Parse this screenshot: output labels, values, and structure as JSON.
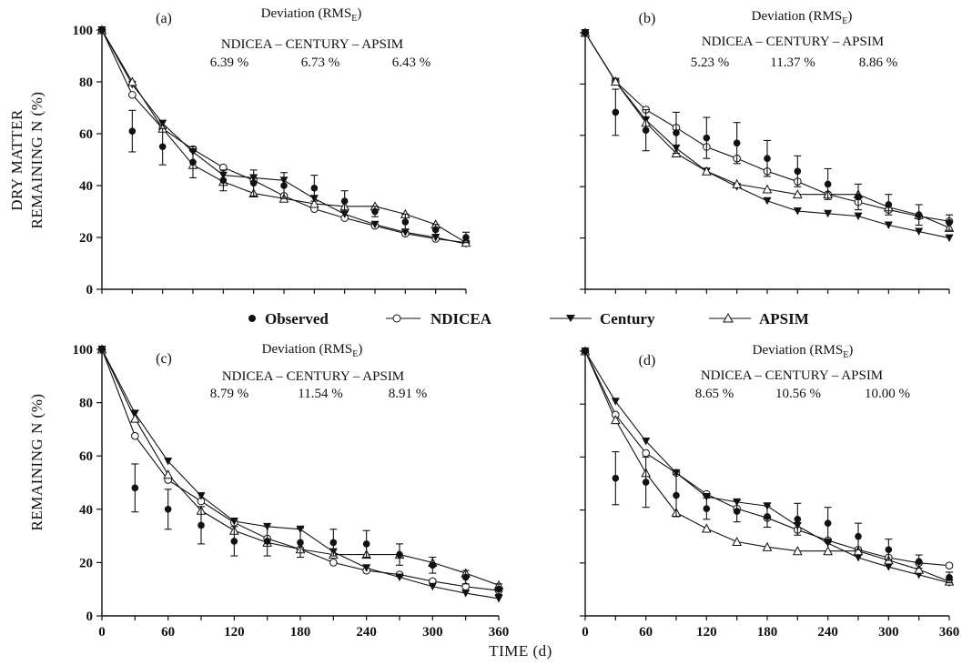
{
  "figure": {
    "xlabel": "TIME (d)",
    "ylabel_top_line1": "DRY MATTER",
    "ylabel_top_line2": "REMAINING N (%)",
    "ylabel_bottom": "REMAINING N (%)"
  },
  "legend": {
    "position": "center, between panel rows",
    "entries": [
      {
        "marker": "filled-circle",
        "label": "Observed"
      },
      {
        "marker": "open-circle",
        "label": "NDICEA"
      },
      {
        "marker": "filled-triangle-down",
        "label": "Century"
      },
      {
        "marker": "open-triangle-up",
        "label": "APSIM"
      }
    ]
  },
  "chart_data": [
    {
      "type": "line",
      "panel": "(a)",
      "deviation_title": "Deviation (RMS",
      "deviation_subscript": "E",
      "deviation_title_end": ")",
      "deviation_models": "NDICEA – CENTURY – APSIM",
      "deviation_values": [
        "6.39 %",
        "6.73 %",
        "6.43 %"
      ],
      "x": [
        0,
        30,
        60,
        90,
        120,
        150,
        180,
        210,
        240,
        270,
        300,
        330,
        360
      ],
      "xticks": [],
      "yticks": [
        0,
        20,
        40,
        60,
        80,
        100
      ],
      "xlim": [
        0,
        360
      ],
      "ylim": [
        0,
        100
      ],
      "grid": false,
      "series": [
        {
          "name": "Observed",
          "marker": "filled-circle",
          "line": false,
          "values": [
            100,
            61,
            55,
            49,
            42,
            41,
            40,
            39,
            34,
            30,
            26,
            23,
            20
          ],
          "error": [
            0,
            8,
            7,
            6,
            4,
            5,
            5,
            5,
            4,
            2,
            3,
            2,
            2
          ]
        },
        {
          "name": "NDICEA",
          "marker": "open-circle",
          "line": true,
          "values": [
            100,
            75,
            62,
            54,
            47,
            42,
            36,
            31,
            27.5,
            24.5,
            21.5,
            19.5,
            18
          ]
        },
        {
          "name": "Century",
          "marker": "filled-triangle-down",
          "line": true,
          "values": [
            100,
            79,
            64,
            53,
            44,
            43,
            42,
            35,
            29,
            25,
            22,
            20,
            17.5
          ]
        },
        {
          "name": "APSIM",
          "marker": "open-triangle-up",
          "line": true,
          "values": [
            100,
            80,
            62,
            48,
            41.5,
            37,
            35,
            33,
            32,
            32,
            29,
            25,
            18
          ]
        }
      ]
    },
    {
      "type": "line",
      "panel": "(b)",
      "deviation_title": "Deviation (RMS",
      "deviation_subscript": "E",
      "deviation_title_end": ")",
      "deviation_models": "NDICEA – CENTURY – APSIM",
      "deviation_values": [
        "5.23 %",
        "11.37 %",
        "8.86 %"
      ],
      "x": [
        0,
        30,
        60,
        90,
        120,
        150,
        180,
        210,
        240,
        270,
        300,
        330,
        360
      ],
      "xticks": [],
      "yticks": [],
      "xlim": [
        0,
        360
      ],
      "ylim": [
        0,
        100
      ],
      "grid": false,
      "series": [
        {
          "name": "Observed",
          "marker": "filled-circle",
          "line": false,
          "values": [
            100,
            69,
            62,
            61,
            59,
            57,
            51,
            46,
            41,
            36,
            33,
            29,
            26
          ],
          "error": [
            0,
            9,
            8,
            8,
            8,
            8,
            7,
            6,
            6,
            5,
            4,
            4,
            3
          ]
        },
        {
          "name": "NDICEA",
          "marker": "open-circle",
          "line": true,
          "values": [
            100,
            81,
            70,
            63,
            55.5,
            51,
            46,
            42,
            37,
            34,
            31,
            28.5,
            26.5
          ]
        },
        {
          "name": "Century",
          "marker": "filled-triangle-down",
          "line": true,
          "values": [
            100,
            81,
            66,
            55,
            46,
            40,
            34.5,
            30.5,
            29.5,
            28.5,
            25,
            22.5,
            20
          ]
        },
        {
          "name": "APSIM",
          "marker": "open-triangle-up",
          "line": true,
          "values": [
            100,
            81,
            65,
            53,
            46,
            41,
            39,
            37,
            37,
            37,
            32,
            29,
            24
          ]
        }
      ]
    },
    {
      "type": "line",
      "panel": "(c)",
      "deviation_title": "Deviation (RMS",
      "deviation_subscript": "E",
      "deviation_title_end": ")",
      "deviation_models": "NDICEA – CENTURY – APSIM",
      "deviation_values": [
        "8.79 %",
        "11.54 %",
        "8.91 %"
      ],
      "x": [
        0,
        30,
        60,
        90,
        120,
        150,
        180,
        210,
        240,
        270,
        300,
        330,
        360
      ],
      "xticks": [
        0,
        60,
        120,
        180,
        240,
        300,
        360
      ],
      "yticks": [
        0,
        20,
        40,
        60,
        80,
        100
      ],
      "xlim": [
        0,
        360
      ],
      "ylim": [
        0,
        100
      ],
      "grid": false,
      "series": [
        {
          "name": "Observed",
          "marker": "filled-circle",
          "line": false,
          "values": [
            100,
            48,
            40,
            34,
            28,
            28,
            27.5,
            27.5,
            27,
            23,
            19,
            14.5,
            10
          ],
          "error": [
            0,
            9,
            7.5,
            7,
            5.5,
            5.5,
            5.5,
            5,
            5,
            4,
            3,
            2.5,
            2
          ]
        },
        {
          "name": "NDICEA",
          "marker": "open-circle",
          "line": true,
          "values": [
            100,
            67.5,
            51,
            43,
            35,
            29,
            25,
            20,
            17,
            15.5,
            13,
            11,
            9.5
          ]
        },
        {
          "name": "Century",
          "marker": "filled-triangle-down",
          "line": true,
          "values": [
            100,
            76,
            58,
            45,
            35.5,
            33.5,
            32.5,
            24,
            18,
            14.5,
            11,
            8.5,
            6.5
          ]
        },
        {
          "name": "APSIM",
          "marker": "open-triangle-up",
          "line": true,
          "values": [
            100,
            74,
            53,
            39.5,
            32,
            27.5,
            25,
            23,
            23,
            23,
            20,
            16,
            11.5
          ]
        }
      ]
    },
    {
      "type": "line",
      "panel": "(d)",
      "deviation_title": "Deviation (RMS",
      "deviation_subscript": "E",
      "deviation_title_end": ")",
      "deviation_models": "NDICEA – CENTURY – APSIM",
      "deviation_values": [
        "8.65 %",
        "10.56 %",
        "10.00 %"
      ],
      "x": [
        0,
        30,
        60,
        90,
        120,
        150,
        180,
        210,
        240,
        270,
        300,
        330,
        360
      ],
      "xticks": [
        0,
        60,
        120,
        180,
        240,
        300,
        360
      ],
      "yticks": [],
      "xlim": [
        0,
        360
      ],
      "ylim": [
        0,
        100
      ],
      "grid": false,
      "series": [
        {
          "name": "Observed",
          "marker": "filled-circle",
          "line": false,
          "values": [
            100,
            52,
            50.5,
            45.5,
            40.5,
            39.5,
            37.5,
            36.5,
            35,
            30,
            25,
            20.5,
            14.5
          ],
          "error": [
            0,
            10,
            9.5,
            8,
            4,
            4,
            4,
            6,
            6,
            5,
            4,
            2.5,
            2
          ]
        },
        {
          "name": "NDICEA",
          "marker": "open-circle",
          "line": true,
          "values": [
            100,
            76,
            61.5,
            54,
            46,
            40.5,
            37,
            32.5,
            28.5,
            25,
            22,
            20,
            19
          ]
        },
        {
          "name": "Century",
          "marker": "filled-triangle-down",
          "line": true,
          "values": [
            100,
            81,
            66,
            54,
            45,
            43,
            41.5,
            34,
            27.5,
            22,
            18.5,
            15.5,
            12.5
          ]
        },
        {
          "name": "APSIM",
          "marker": "open-triangle-up",
          "line": true,
          "values": [
            100,
            74,
            54,
            39,
            33,
            28,
            26,
            24.5,
            24.5,
            24.5,
            21,
            17.5,
            13
          ]
        }
      ]
    }
  ]
}
